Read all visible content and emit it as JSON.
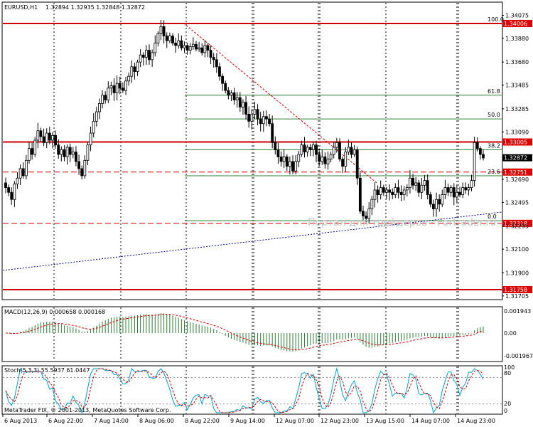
{
  "header": {
    "symbol": "EURUSD,H1",
    "ohlc": "1.32894 1.32935 1.32848 1.32872"
  },
  "macd_label": "MACD(12,26,9) 0.000658 0.000168",
  "stoch_label": "Stoch(5,3,3) 55.5937 61.0447",
  "copyright": "MetaTrader FIX, © 2001-2013, MetaQuotes Software Corp.",
  "watermark": "Портал для трейдеров - Fortrader.ru",
  "colors": {
    "up_fill": "#ffffff",
    "down_fill": "#000000",
    "level": "#cc0000",
    "level_box": "#dd0000",
    "fibo": "#2e7d32",
    "trend_red": "#cc0000",
    "trend_blue": "#000080",
    "macd_hist": "#2e7d32",
    "macd_signal": "#cc0000",
    "stoch_main": "#00a0c8",
    "stoch_signal": "#cc0000"
  },
  "chart_data": {
    "type": "candlestick",
    "ylim": [
      1.3168,
      1.3418
    ],
    "y_ticks": [
      "1.34075",
      "1.33880",
      "1.33680",
      "1.33485",
      "1.33285",
      "1.33090",
      "1.32690",
      "1.32495",
      "1.32295",
      "1.32100",
      "1.31900",
      "1.31705"
    ],
    "x_ticks": [
      "6 Aug 2013",
      "6 Aug 22:00",
      "7 Aug 14:00",
      "8 Aug 06:00",
      "8 Aug 22:00",
      "9 Aug 14:00",
      "12 Aug 07:00",
      "12 Aug 23:00",
      "13 Aug 15:00",
      "14 Aug 07:00",
      "14 Aug 23:00"
    ],
    "last_price": "1.32872",
    "horizontal_levels": [
      {
        "price": 1.34006,
        "label": "1.34006",
        "style": "solid"
      },
      {
        "price": 1.33005,
        "label": "1.33005",
        "style": "solid"
      },
      {
        "price": 1.32751,
        "label": "1.32751",
        "style": "dashed"
      },
      {
        "price": 1.32318,
        "label": "1.32318",
        "style": "dashed"
      },
      {
        "price": 1.31758,
        "label": "1.31758",
        "style": "solid"
      }
    ],
    "fibonacci": [
      {
        "level": "100.0",
        "price": 1.34006
      },
      {
        "level": "61.8",
        "price": 1.334
      },
      {
        "level": "50.0",
        "price": 1.332
      },
      {
        "level": "38.2",
        "price": 1.3294
      },
      {
        "level": "23.6",
        "price": 1.3272
      },
      {
        "level": "0.0",
        "price": 1.3234
      }
    ],
    "closes": [
      1.3262,
      1.3258,
      1.3252,
      1.3265,
      1.327,
      1.3278,
      1.3272,
      1.3285,
      1.3295,
      1.329,
      1.3302,
      1.331,
      1.3305,
      1.33,
      1.3308,
      1.3302,
      1.3306,
      1.3298,
      1.329,
      1.3294,
      1.3288,
      1.3296,
      1.329,
      1.3292,
      1.3284,
      1.3278,
      1.3272,
      1.3285,
      1.3298,
      1.3308,
      1.3318,
      1.3326,
      1.3333,
      1.334,
      1.3336,
      1.3346,
      1.3348,
      1.3342,
      1.335,
      1.3346,
      1.3344,
      1.3352,
      1.3356,
      1.3364,
      1.336,
      1.3368,
      1.3374,
      1.3372,
      1.3378,
      1.337,
      1.3376,
      1.3384,
      1.3392,
      1.3398,
      1.339,
      1.3386,
      1.339,
      1.3384,
      1.3382,
      1.3386,
      1.338,
      1.3382,
      1.3378,
      1.3381,
      1.3383,
      1.3379,
      1.338,
      1.3376,
      1.3382,
      1.3378,
      1.3372,
      1.337,
      1.3364,
      1.3356,
      1.335,
      1.3344,
      1.334,
      1.3342,
      1.3336,
      1.3338,
      1.333,
      1.3334,
      1.3324,
      1.3318,
      1.3324,
      1.3328,
      1.332,
      1.3316,
      1.3322,
      1.332,
      1.3316,
      1.33,
      1.3294,
      1.3288,
      1.3284,
      1.3288,
      1.328,
      1.3284,
      1.3276,
      1.3284,
      1.329,
      1.3298,
      1.3292,
      1.3296,
      1.3294,
      1.3298,
      1.329,
      1.3284,
      1.3288,
      1.3282,
      1.3286,
      1.329,
      1.3296,
      1.33,
      1.3286,
      1.328,
      1.3292,
      1.3296,
      1.329,
      1.3294,
      1.327,
      1.3242,
      1.3238,
      1.3236,
      1.3244,
      1.3252,
      1.326,
      1.3256,
      1.3262,
      1.3258,
      1.326,
      1.3258,
      1.3256,
      1.3262,
      1.3258,
      1.3256,
      1.326,
      1.3262,
      1.327,
      1.3264,
      1.3266,
      1.3258,
      1.3264,
      1.3268,
      1.3256,
      1.3248,
      1.3244,
      1.3252,
      1.3248,
      1.3256,
      1.3262,
      1.3258,
      1.3262,
      1.3254,
      1.3258,
      1.3256,
      1.3262,
      1.326,
      1.3262,
      1.3268,
      1.33,
      1.3295,
      1.329,
      1.3287
    ]
  }
}
